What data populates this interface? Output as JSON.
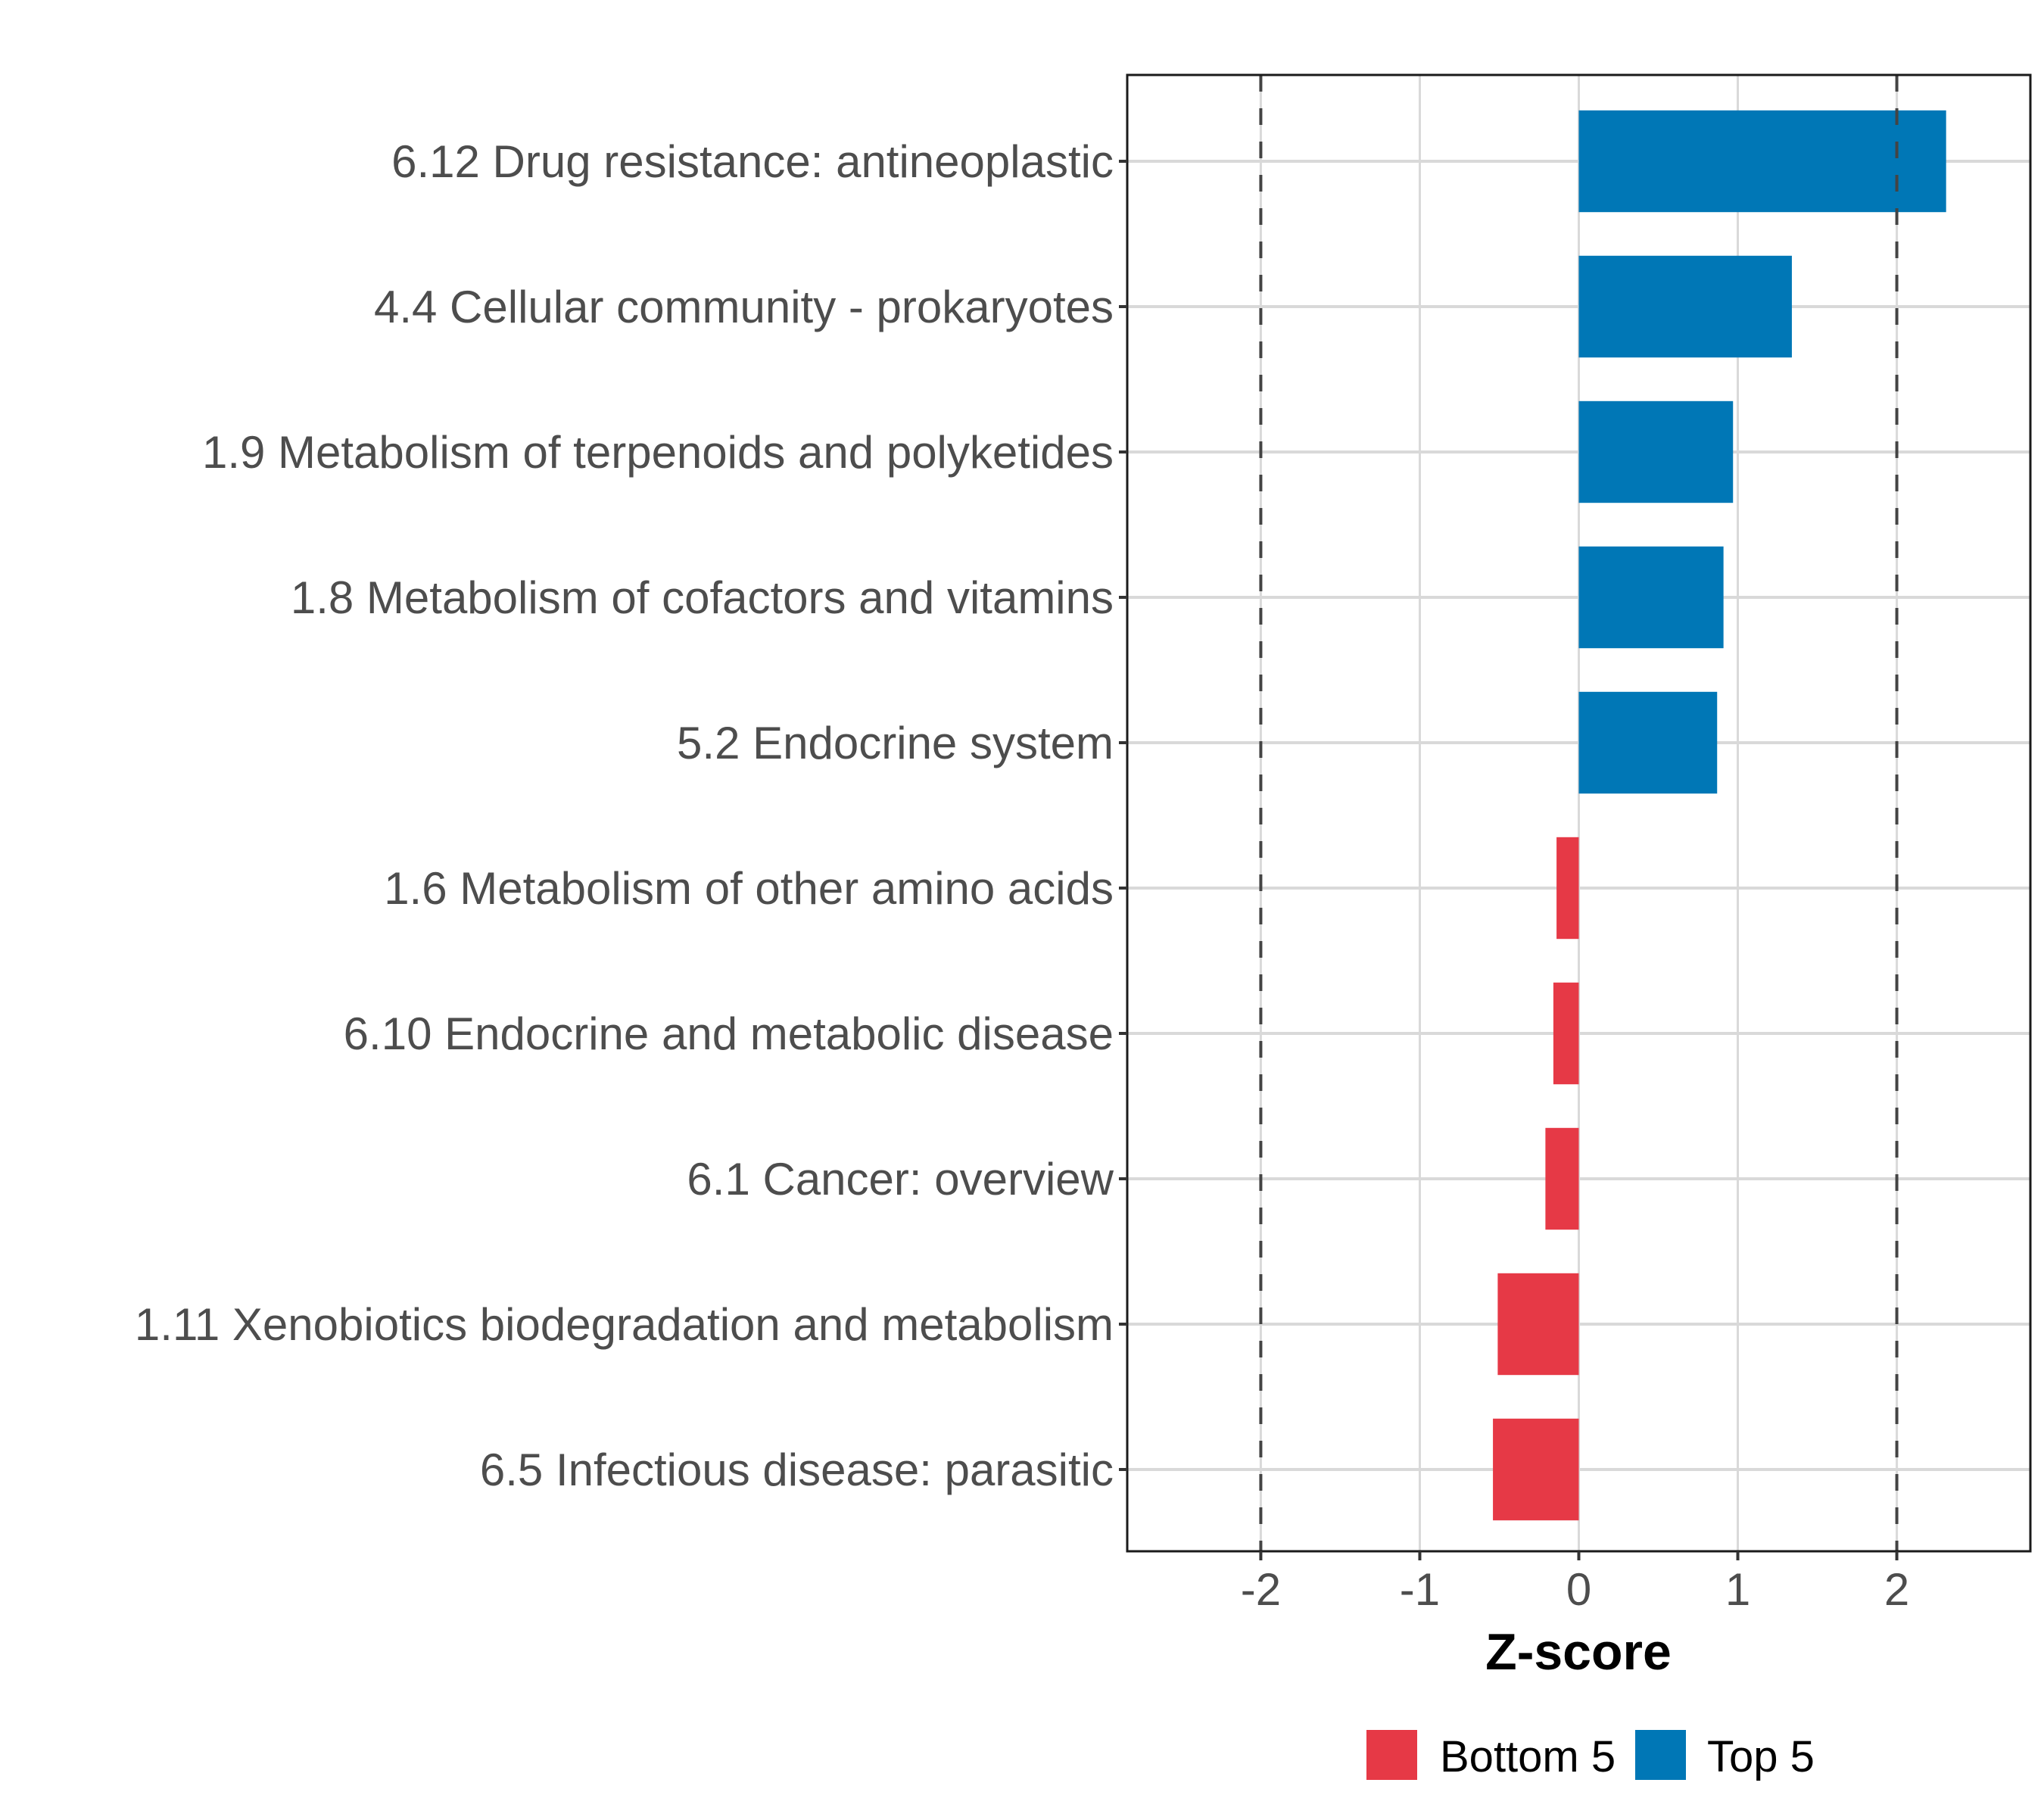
{
  "chart_data": {
    "type": "bar",
    "orientation": "horizontal",
    "title": "",
    "xlabel": "Z-score",
    "ylabel": "",
    "xlim": [
      -2.84,
      2.84
    ],
    "xticks": [
      -2,
      -1,
      0,
      1,
      2
    ],
    "xtick_labels": [
      "-2",
      "-1",
      "0",
      "1",
      "2"
    ],
    "reference_lines": [
      -2,
      2
    ],
    "grid": true,
    "categories": [
      "6.12 Drug resistance: antineoplastic",
      "4.4 Cellular community - prokaryotes",
      "1.9 Metabolism of terpenoids and polyketides",
      "1.8 Metabolism of cofactors and vitamins",
      "5.2 Endocrine system",
      "1.6 Metabolism of other amino acids",
      "6.10 Endocrine and metabolic disease",
      "6.1 Cancer: overview",
      "1.11 Xenobiotics biodegradation and metabolism",
      "6.5 Infectious disease: parasitic"
    ],
    "values": [
      2.31,
      1.34,
      0.97,
      0.91,
      0.87,
      -0.14,
      -0.16,
      -0.21,
      -0.51,
      -0.54
    ],
    "groups": [
      "Top 5",
      "Top 5",
      "Top 5",
      "Top 5",
      "Top 5",
      "Bottom 5",
      "Bottom 5",
      "Bottom 5",
      "Bottom 5",
      "Bottom 5"
    ],
    "legend": {
      "position": "bottom",
      "entries": [
        {
          "name": "Bottom 5",
          "color": "#e63946"
        },
        {
          "name": "Top 5",
          "color": "#0077b6"
        }
      ]
    }
  }
}
